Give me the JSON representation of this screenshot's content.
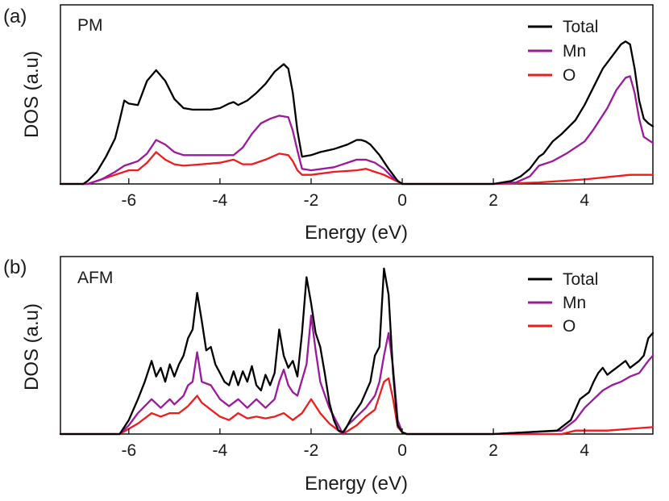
{
  "colors": {
    "Total": "#000000",
    "Mn": "#9b1a9b",
    "O": "#ee1c1c"
  },
  "chart_data": [
    {
      "type": "line",
      "panel_label": "(a)",
      "title": "PM",
      "xlabel": "Energy (eV)",
      "ylabel": "DOS (a.u)",
      "xlim": [
        -7.5,
        5.5
      ],
      "ylim": [
        0,
        1.0
      ],
      "xticks": [
        -6,
        -4,
        -2,
        0,
        2,
        4
      ],
      "xtick_labels": [
        "-6",
        "-4",
        "-2",
        "0",
        "2",
        "4"
      ],
      "legend_position": "top-right",
      "series": [
        {
          "name": "Total",
          "x": [
            -7.5,
            -7.0,
            -6.9,
            -6.7,
            -6.5,
            -6.3,
            -6.2,
            -6.1,
            -6.0,
            -5.8,
            -5.6,
            -5.4,
            -5.2,
            -5.0,
            -4.8,
            -4.6,
            -4.4,
            -4.2,
            -4.0,
            -3.8,
            -3.7,
            -3.6,
            -3.4,
            -3.2,
            -3.0,
            -2.8,
            -2.6,
            -2.5,
            -2.4,
            -2.3,
            -2.2,
            -2.0,
            -1.8,
            -1.5,
            -1.2,
            -1.0,
            -0.9,
            -0.8,
            -0.7,
            -0.5,
            -0.3,
            -0.1,
            0.0,
            0.1,
            1.0,
            2.0,
            2.4,
            2.6,
            2.8,
            3.0,
            3.1,
            3.3,
            3.5,
            3.8,
            4.0,
            4.2,
            4.4,
            4.6,
            4.8,
            4.9,
            5.0,
            5.1,
            5.2,
            5.3,
            5.4,
            5.5
          ],
          "values": [
            0,
            0,
            0.02,
            0.08,
            0.18,
            0.3,
            0.42,
            0.55,
            0.53,
            0.52,
            0.68,
            0.75,
            0.68,
            0.56,
            0.5,
            0.49,
            0.49,
            0.49,
            0.5,
            0.53,
            0.54,
            0.52,
            0.55,
            0.6,
            0.66,
            0.74,
            0.79,
            0.76,
            0.6,
            0.35,
            0.18,
            0.19,
            0.21,
            0.23,
            0.26,
            0.29,
            0.29,
            0.28,
            0.26,
            0.19,
            0.1,
            0.02,
            0,
            0,
            0,
            0,
            0.02,
            0.05,
            0.1,
            0.18,
            0.2,
            0.28,
            0.33,
            0.42,
            0.52,
            0.64,
            0.76,
            0.84,
            0.92,
            0.94,
            0.92,
            0.76,
            0.55,
            0.43,
            0.4,
            0.38
          ]
        },
        {
          "name": "Mn",
          "x": [
            -7.5,
            -6.9,
            -6.6,
            -6.3,
            -6.1,
            -5.8,
            -5.6,
            -5.4,
            -5.2,
            -5.0,
            -4.8,
            -4.4,
            -4.0,
            -3.7,
            -3.5,
            -3.3,
            -3.1,
            -2.9,
            -2.7,
            -2.5,
            -2.4,
            -2.3,
            -2.2,
            -2.0,
            -1.5,
            -1.0,
            -0.8,
            -0.6,
            -0.4,
            -0.2,
            0.0,
            0.1,
            2.0,
            2.5,
            2.8,
            3.0,
            3.3,
            3.6,
            4.0,
            4.2,
            4.5,
            4.7,
            4.9,
            5.0,
            5.1,
            5.2,
            5.3,
            5.5
          ],
          "values": [
            0,
            0,
            0.03,
            0.08,
            0.12,
            0.15,
            0.2,
            0.29,
            0.26,
            0.21,
            0.19,
            0.19,
            0.19,
            0.19,
            0.24,
            0.33,
            0.4,
            0.43,
            0.45,
            0.44,
            0.35,
            0.22,
            0.1,
            0.09,
            0.11,
            0.16,
            0.16,
            0.14,
            0.1,
            0.04,
            0,
            0,
            0,
            0.01,
            0.05,
            0.12,
            0.15,
            0.2,
            0.28,
            0.36,
            0.5,
            0.62,
            0.7,
            0.71,
            0.6,
            0.43,
            0.31,
            0.27
          ]
        },
        {
          "name": "O",
          "x": [
            -7.5,
            -6.9,
            -6.6,
            -6.3,
            -6.0,
            -5.8,
            -5.6,
            -5.4,
            -5.2,
            -5.0,
            -4.8,
            -4.4,
            -4.0,
            -3.7,
            -3.5,
            -3.3,
            -3.0,
            -2.7,
            -2.5,
            -2.4,
            -2.3,
            -2.2,
            -2.0,
            -1.5,
            -1.0,
            -0.8,
            -0.6,
            -0.4,
            -0.2,
            0.0,
            0.1,
            2.0,
            3.0,
            4.0,
            5.0,
            5.5
          ],
          "values": [
            0,
            0,
            0.03,
            0.06,
            0.09,
            0.09,
            0.14,
            0.21,
            0.16,
            0.13,
            0.12,
            0.13,
            0.14,
            0.16,
            0.13,
            0.13,
            0.16,
            0.2,
            0.19,
            0.15,
            0.09,
            0.06,
            0.06,
            0.08,
            0.09,
            0.1,
            0.08,
            0.06,
            0.03,
            0,
            0,
            0,
            0.01,
            0.03,
            0.06,
            0.06
          ]
        }
      ],
      "legend": [
        "Total",
        "Mn",
        "O"
      ]
    },
    {
      "type": "line",
      "panel_label": "(b)",
      "title": "AFM",
      "xlabel": "Energy (eV)",
      "ylabel": "DOS (a.u)",
      "xlim": [
        -7.5,
        5.5
      ],
      "ylim": [
        0,
        1.0
      ],
      "xticks": [
        -6,
        -4,
        -2,
        0,
        2,
        4
      ],
      "xtick_labels": [
        "-6",
        "-4",
        "-2",
        "0",
        "2",
        "4"
      ],
      "legend_position": "top-right",
      "series": [
        {
          "name": "Total",
          "x": [
            -7.5,
            -6.2,
            -6.0,
            -5.8,
            -5.65,
            -5.5,
            -5.4,
            -5.3,
            -5.2,
            -5.1,
            -5.0,
            -4.9,
            -4.8,
            -4.7,
            -4.6,
            -4.5,
            -4.4,
            -4.3,
            -4.2,
            -4.1,
            -4.0,
            -3.9,
            -3.8,
            -3.7,
            -3.6,
            -3.5,
            -3.4,
            -3.3,
            -3.2,
            -3.1,
            -3.0,
            -2.9,
            -2.8,
            -2.7,
            -2.6,
            -2.5,
            -2.4,
            -2.3,
            -2.2,
            -2.1,
            -2.0,
            -1.9,
            -1.8,
            -1.7,
            -1.6,
            -1.5,
            -1.4,
            -1.3,
            -1.2,
            -1.1,
            -1.0,
            -0.9,
            -0.8,
            -0.7,
            -0.6,
            -0.5,
            -0.4,
            -0.3,
            -0.2,
            -0.1,
            0.0,
            0.1,
            2.0,
            3.4,
            3.7,
            3.9,
            4.1,
            4.2,
            4.3,
            4.4,
            4.5,
            4.6,
            4.7,
            4.8,
            4.9,
            5.0,
            5.1,
            5.2,
            5.3,
            5.4,
            5.5
          ],
          "values": [
            0,
            0,
            0.08,
            0.2,
            0.3,
            0.42,
            0.33,
            0.38,
            0.3,
            0.4,
            0.33,
            0.4,
            0.45,
            0.55,
            0.6,
            0.81,
            0.65,
            0.48,
            0.5,
            0.4,
            0.35,
            0.3,
            0.28,
            0.36,
            0.28,
            0.36,
            0.3,
            0.39,
            0.28,
            0.25,
            0.34,
            0.28,
            0.35,
            0.6,
            0.45,
            0.38,
            0.42,
            0.33,
            0.58,
            0.9,
            0.75,
            0.58,
            0.5,
            0.35,
            0.18,
            0.08,
            0.02,
            0.01,
            0.05,
            0.1,
            0.14,
            0.18,
            0.24,
            0.3,
            0.45,
            0.5,
            0.95,
            0.8,
            0.35,
            0.05,
            0.01,
            0.0,
            0.0,
            0.02,
            0.08,
            0.2,
            0.24,
            0.3,
            0.35,
            0.38,
            0.34,
            0.36,
            0.38,
            0.4,
            0.42,
            0.38,
            0.4,
            0.42,
            0.45,
            0.55,
            0.58
          ]
        },
        {
          "name": "Mn",
          "x": [
            -7.5,
            -6.2,
            -6.0,
            -5.8,
            -5.5,
            -5.3,
            -5.1,
            -5.0,
            -4.8,
            -4.7,
            -4.6,
            -4.5,
            -4.4,
            -4.2,
            -4.0,
            -3.8,
            -3.6,
            -3.4,
            -3.2,
            -3.0,
            -2.8,
            -2.7,
            -2.6,
            -2.5,
            -2.4,
            -2.3,
            -2.1,
            -2.0,
            -1.9,
            -1.8,
            -1.6,
            -1.4,
            -1.3,
            -1.2,
            -1.0,
            -0.8,
            -0.6,
            -0.5,
            -0.4,
            -0.3,
            -0.2,
            -0.1,
            0.0,
            0.1,
            2.0,
            3.5,
            3.8,
            4.0,
            4.2,
            4.4,
            4.6,
            4.8,
            5.0,
            5.2,
            5.4,
            5.5
          ],
          "values": [
            0,
            0,
            0.05,
            0.12,
            0.2,
            0.15,
            0.2,
            0.17,
            0.22,
            0.28,
            0.3,
            0.47,
            0.3,
            0.28,
            0.2,
            0.16,
            0.2,
            0.15,
            0.2,
            0.15,
            0.2,
            0.3,
            0.37,
            0.28,
            0.24,
            0.22,
            0.4,
            0.68,
            0.48,
            0.3,
            0.15,
            0.05,
            0.0,
            0.05,
            0.1,
            0.15,
            0.22,
            0.3,
            0.45,
            0.58,
            0.38,
            0.08,
            0.01,
            0,
            0,
            0.02,
            0.08,
            0.15,
            0.2,
            0.25,
            0.28,
            0.3,
            0.33,
            0.35,
            0.42,
            0.45
          ]
        },
        {
          "name": "O",
          "x": [
            -7.5,
            -6.2,
            -6.0,
            -5.8,
            -5.5,
            -5.3,
            -5.1,
            -4.9,
            -4.7,
            -4.5,
            -4.4,
            -4.2,
            -4.0,
            -3.8,
            -3.6,
            -3.4,
            -3.2,
            -3.0,
            -2.8,
            -2.6,
            -2.4,
            -2.2,
            -2.0,
            -1.8,
            -1.6,
            -1.4,
            -1.3,
            -1.0,
            -0.8,
            -0.6,
            -0.5,
            -0.4,
            -0.3,
            -0.2,
            -0.1,
            0.0,
            0.1,
            2.0,
            3.5,
            3.8,
            4.5,
            5.0,
            5.5
          ],
          "values": [
            0,
            0,
            0.03,
            0.06,
            0.12,
            0.1,
            0.12,
            0.12,
            0.16,
            0.22,
            0.18,
            0.14,
            0.1,
            0.08,
            0.12,
            0.09,
            0.1,
            0.09,
            0.1,
            0.12,
            0.08,
            0.12,
            0.2,
            0.12,
            0.06,
            0.02,
            0.0,
            0.05,
            0.1,
            0.14,
            0.22,
            0.3,
            0.32,
            0.2,
            0.04,
            0.01,
            0,
            0,
            0.0,
            0.02,
            0.02,
            0.03,
            0.04
          ]
        }
      ],
      "legend": [
        "Total",
        "Mn",
        "O"
      ]
    }
  ]
}
